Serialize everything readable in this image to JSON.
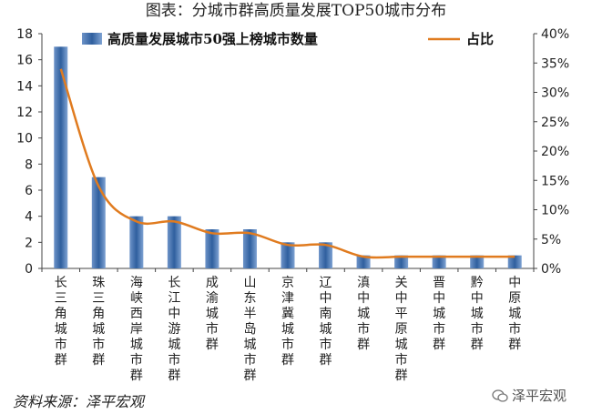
{
  "chart_data": {
    "type": "bar",
    "title": "图表：分城市群高质量发展TOP50城市分布",
    "categories": [
      "长三角城市群",
      "珠三角城市群",
      "海峡西岸城市群",
      "长江中游城市群",
      "成渝城市群",
      "山东半岛城市群",
      "京津冀城市群",
      "辽中南城市群",
      "滇中城市群",
      "关中平原城市群",
      "晋中城市群",
      "黔中城市群",
      "中原城市群"
    ],
    "series": [
      {
        "name": "高质量发展城市50强上榜城市数量",
        "type": "bar",
        "axis": "left",
        "values": [
          17,
          7,
          4,
          4,
          3,
          3,
          2,
          2,
          1,
          1,
          1,
          1,
          1
        ],
        "color": "#4f81bd"
      },
      {
        "name": "占比",
        "type": "line",
        "axis": "right",
        "values": [
          34,
          14,
          8,
          8,
          6,
          6,
          4,
          4,
          2,
          2,
          2,
          2,
          2
        ],
        "color": "#e07b1f"
      }
    ],
    "ylim": [
      0,
      18
    ],
    "y_ticks": [
      0,
      2,
      4,
      6,
      8,
      10,
      12,
      14,
      16,
      18
    ],
    "y2lim": [
      0,
      40
    ],
    "y2_ticks": [
      "0%",
      "5%",
      "10%",
      "15%",
      "20%",
      "25%",
      "30%",
      "35%",
      "40%"
    ],
    "legend": "top",
    "grid": false
  },
  "source": "资料来源：泽平宏观",
  "watermark": "泽平宏观"
}
